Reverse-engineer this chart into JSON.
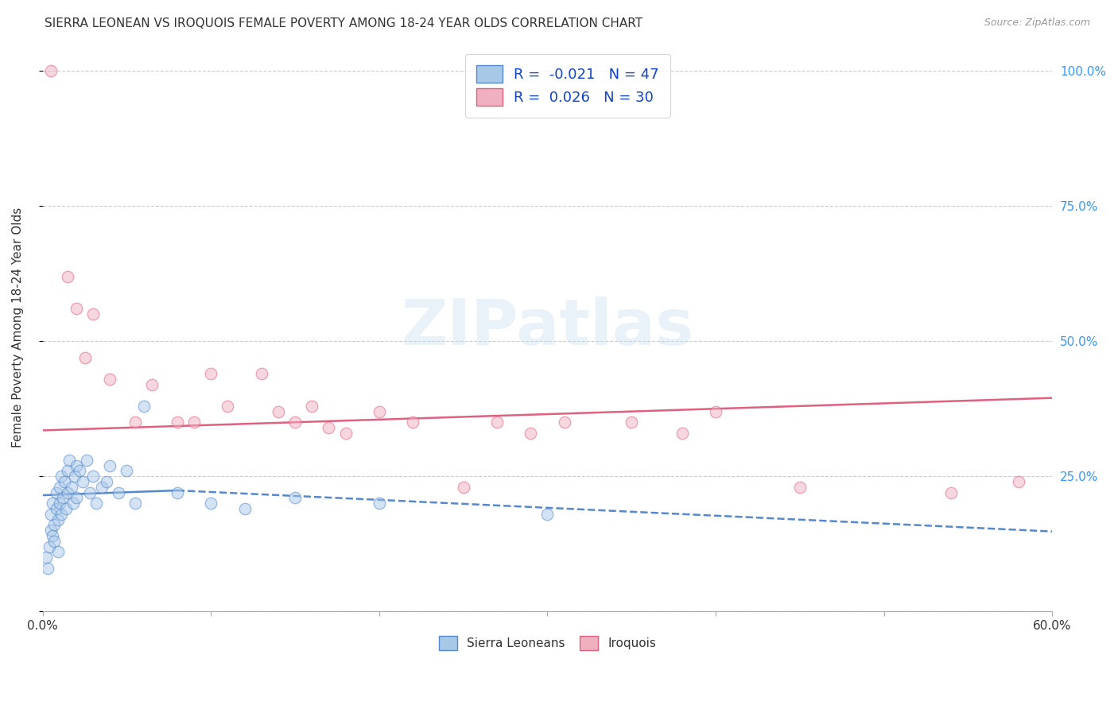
{
  "title": "SIERRA LEONEAN VS IROQUOIS FEMALE POVERTY AMONG 18-24 YEAR OLDS CORRELATION CHART",
  "source": "Source: ZipAtlas.com",
  "ylabel": "Female Poverty Among 18-24 Year Olds",
  "x_min": 0.0,
  "x_max": 0.6,
  "y_min": 0.0,
  "y_max": 1.05,
  "x_ticks": [
    0.0,
    0.1,
    0.2,
    0.3,
    0.4,
    0.5,
    0.6
  ],
  "y_ticks": [
    0.0,
    0.25,
    0.5,
    0.75,
    1.0
  ],
  "y_tick_labels_right": [
    "",
    "25.0%",
    "50.0%",
    "75.0%",
    "100.0%"
  ],
  "background_color": "#ffffff",
  "grid_color": "#cccccc",
  "watermark_text": "ZIPatlas",
  "sierra_leone_color": "#a8c8e8",
  "sierra_leone_edge_color": "#5588cc",
  "iroquois_color": "#f0b0c0",
  "iroquois_edge_color": "#e06080",
  "sierra_leone_R": -0.021,
  "sierra_leone_N": 47,
  "iroquois_R": 0.026,
  "iroquois_N": 30,
  "legend_color": "#1144cc",
  "sierra_leone_x": [
    0.002,
    0.003,
    0.004,
    0.005,
    0.005,
    0.006,
    0.006,
    0.007,
    0.007,
    0.008,
    0.008,
    0.009,
    0.009,
    0.01,
    0.01,
    0.011,
    0.011,
    0.012,
    0.013,
    0.014,
    0.015,
    0.015,
    0.016,
    0.017,
    0.018,
    0.019,
    0.02,
    0.02,
    0.022,
    0.024,
    0.026,
    0.028,
    0.03,
    0.032,
    0.035,
    0.038,
    0.04,
    0.045,
    0.05,
    0.055,
    0.06,
    0.08,
    0.1,
    0.12,
    0.15,
    0.2,
    0.3
  ],
  "sierra_leone_y": [
    0.1,
    0.08,
    0.12,
    0.15,
    0.18,
    0.14,
    0.2,
    0.13,
    0.16,
    0.19,
    0.22,
    0.17,
    0.11,
    0.23,
    0.2,
    0.18,
    0.25,
    0.21,
    0.24,
    0.19,
    0.26,
    0.22,
    0.28,
    0.23,
    0.2,
    0.25,
    0.27,
    0.21,
    0.26,
    0.24,
    0.28,
    0.22,
    0.25,
    0.2,
    0.23,
    0.24,
    0.27,
    0.22,
    0.26,
    0.2,
    0.38,
    0.22,
    0.2,
    0.19,
    0.21,
    0.2,
    0.18
  ],
  "iroquois_x": [
    0.005,
    0.015,
    0.02,
    0.025,
    0.03,
    0.04,
    0.055,
    0.065,
    0.08,
    0.09,
    0.1,
    0.11,
    0.13,
    0.14,
    0.15,
    0.16,
    0.17,
    0.18,
    0.2,
    0.22,
    0.25,
    0.27,
    0.29,
    0.31,
    0.35,
    0.38,
    0.4,
    0.45,
    0.54,
    0.58
  ],
  "iroquois_y": [
    1.0,
    0.62,
    0.56,
    0.47,
    0.55,
    0.43,
    0.35,
    0.42,
    0.35,
    0.35,
    0.44,
    0.38,
    0.44,
    0.37,
    0.35,
    0.38,
    0.34,
    0.33,
    0.37,
    0.35,
    0.23,
    0.35,
    0.33,
    0.35,
    0.35,
    0.33,
    0.37,
    0.23,
    0.22,
    0.24
  ],
  "sl_trend_x": [
    0.0,
    0.6
  ],
  "sl_trend_y": [
    0.215,
    0.148
  ],
  "iq_trend_x": [
    0.0,
    0.6
  ],
  "iq_trend_y": [
    0.335,
    0.395
  ],
  "scatter_size": 110,
  "scatter_alpha": 0.5,
  "scatter_linewidth": 1.0
}
